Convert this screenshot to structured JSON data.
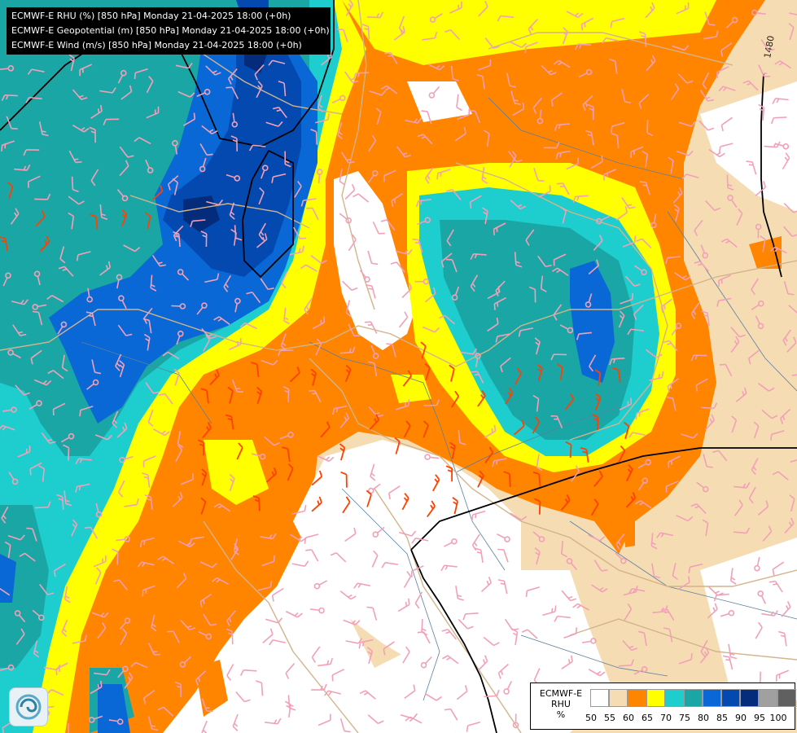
{
  "header": {
    "lines": [
      "ECMWF-E RHU (%) [850 hPa] Monday 21-04-2025 18:00 (+0h)",
      "ECMWF-E Geopotential (m) [850 hPa] Monday 21-04-2025 18:00 (+0h)",
      "ECMWF-E Wind (m/s) [850 hPa] Monday 21-04-2025 18:00 (+0h)"
    ]
  },
  "map": {
    "contour_label": "1480",
    "colors": {
      "background": "#ffffff",
      "rh50_55": "#f6dcb3",
      "rh55_60": "#ff8400",
      "rh60_65": "#ffff00",
      "rh65_70": "#1ecece",
      "rh70_75": "#1ba6a6",
      "rh75_80": "#0a68d6",
      "rh80_85": "#0349b0",
      "rh85_90": "#042c7a",
      "borders": "#d2b48c",
      "rivers": "#5b7fa0",
      "contour": "#000000",
      "barbs_light": "#f2a0b8",
      "barbs_strong": "#ff4000"
    }
  },
  "legend": {
    "title_lines": [
      "ECMWF-E",
      "RHU",
      "%"
    ],
    "swatches": [
      "#ffffff",
      "#f6dcb3",
      "#ff8400",
      "#ffff00",
      "#1ecece",
      "#1ba6a6",
      "#0a68d6",
      "#0349b0",
      "#042c7a",
      "#a0a0a0",
      "#606060"
    ],
    "ticks": [
      "50",
      "55",
      "60",
      "65",
      "70",
      "75",
      "80",
      "85",
      "90",
      "95",
      "100"
    ]
  }
}
